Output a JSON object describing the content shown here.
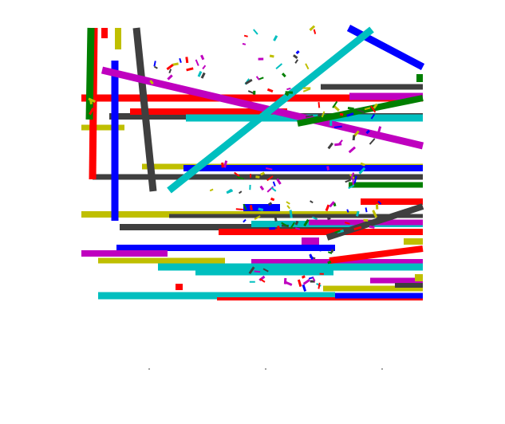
{
  "canvas": {
    "background": "#ffffff"
  },
  "palette": {
    "red": "#ff0000",
    "green": "#007f00",
    "blue": "#0000ff",
    "cyan": "#00bfbf",
    "magenta": "#bf00bf",
    "olive": "#bfbf00",
    "gray": "#3f3f3f"
  }
}
